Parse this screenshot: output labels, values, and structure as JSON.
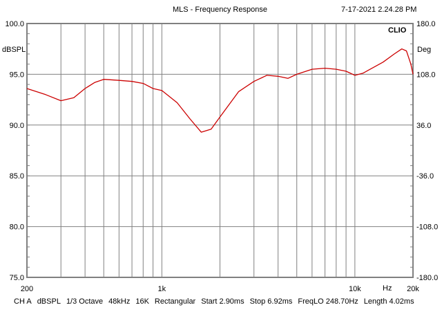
{
  "chart_data": {
    "type": "line",
    "title": "MLS - Frequency Response",
    "timestamp": "7-17-2021 2.24.28 PM",
    "brand": "CLIO",
    "ylabel": "dBSPL",
    "y2label": "Deg",
    "xlabel": "Hz",
    "xscale": "log",
    "xlim": [
      200,
      20000
    ],
    "ylim": [
      75,
      100
    ],
    "y2lim": [
      -180,
      180
    ],
    "grid": true,
    "x_tick_labels": [
      {
        "value": 200,
        "label": "200"
      },
      {
        "value": 1000,
        "label": "1k"
      },
      {
        "value": 10000,
        "label": "10k"
      },
      {
        "value": 20000,
        "label": "20k"
      }
    ],
    "x_gridlines": [
      300,
      400,
      500,
      600,
      700,
      800,
      900,
      1000,
      2000,
      3000,
      4000,
      5000,
      6000,
      7000,
      8000,
      9000,
      10000
    ],
    "y_ticks": [
      {
        "value": 100,
        "label": "100.0"
      },
      {
        "value": 95,
        "label": "95.0"
      },
      {
        "value": 90,
        "label": "90.0"
      },
      {
        "value": 85,
        "label": "85.0"
      },
      {
        "value": 80,
        "label": "80.0"
      },
      {
        "value": 75,
        "label": "75.0"
      }
    ],
    "y2_ticks": [
      "180.0",
      "108.0",
      "36.0",
      "-36.0",
      "-108.0",
      "-180.0"
    ],
    "series": [
      {
        "name": "CH A",
        "color": "#cc0000",
        "x": [
          200,
          250,
          300,
          350,
          400,
          450,
          500,
          600,
          700,
          800,
          900,
          1000,
          1200,
          1400,
          1600,
          1800,
          2000,
          2500,
          3000,
          3500,
          4000,
          4500,
          5000,
          6000,
          7000,
          8000,
          9000,
          10000,
          11000,
          12000,
          14000,
          16000,
          17500,
          18500,
          19500,
          20000
        ],
        "y": [
          93.6,
          93.0,
          92.4,
          92.7,
          93.6,
          94.2,
          94.5,
          94.4,
          94.3,
          94.1,
          93.6,
          93.4,
          92.2,
          90.6,
          89.3,
          89.6,
          90.8,
          93.3,
          94.3,
          94.9,
          94.8,
          94.6,
          95.0,
          95.5,
          95.6,
          95.5,
          95.3,
          94.9,
          95.1,
          95.5,
          96.2,
          97.0,
          97.5,
          97.3,
          96.0,
          95.0
        ]
      }
    ]
  },
  "footer": [
    "CH A",
    "dBSPL",
    "1/3 Octave",
    "48kHz",
    "16K",
    "Rectangular",
    "Start 2.90ms",
    "Stop 6.92ms",
    "FreqLO 248.70Hz",
    "Length 4.02ms"
  ]
}
